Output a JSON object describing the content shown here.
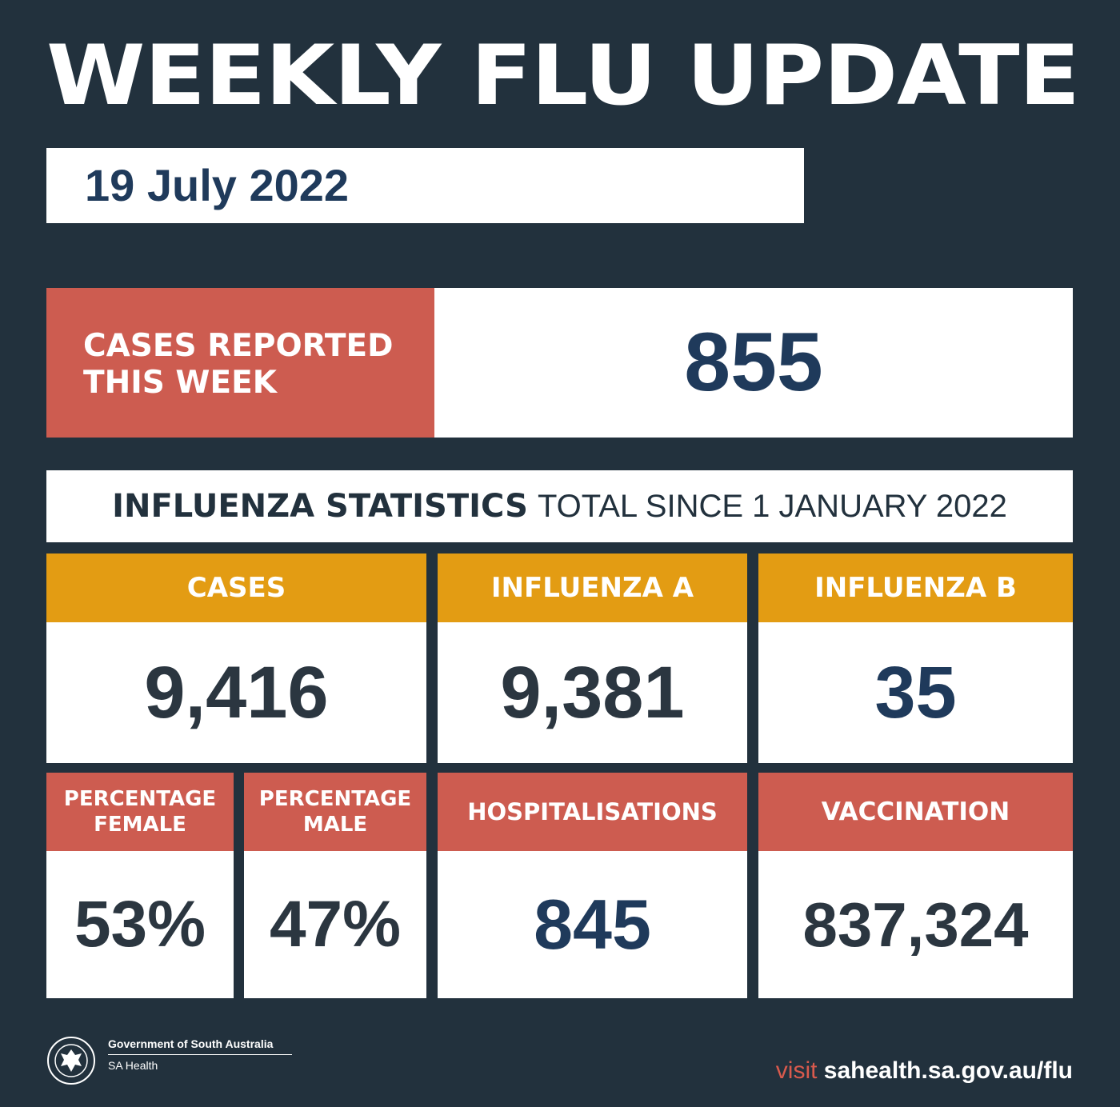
{
  "title": "WEEKLY FLU UPDATE",
  "date": "19 July 2022",
  "weekly": {
    "label_line1": "CASES REPORTED",
    "label_line2": "THIS WEEK",
    "value": "855"
  },
  "stats_bar": {
    "bold": "INFLUENZA STATISTICS",
    "light": "TOTAL SINCE 1 JANUARY 2022"
  },
  "stats": {
    "cases": {
      "label": "CASES",
      "value": "9,416"
    },
    "influenza_a": {
      "label": "INFLUENZA A",
      "value": "9,381"
    },
    "influenza_b": {
      "label": "INFLUENZA B",
      "value": "35"
    },
    "female": {
      "label_line1": "PERCENTAGE",
      "label_line2": "FEMALE",
      "value": "53%"
    },
    "male": {
      "label_line1": "PERCENTAGE",
      "label_line2": "MALE",
      "value": "47%"
    },
    "hospitalisations": {
      "label": "HOSPITALISATIONS",
      "value": "845"
    },
    "vaccination": {
      "label": "VACCINATION",
      "value": "837,324"
    }
  },
  "footer": {
    "org": "Government of South Australia",
    "dept": "SA Health",
    "visit_prefix": "visit",
    "visit_url": "sahealth.sa.gov.au/flu",
    "logo_icon": "sa-government-crest-icon"
  },
  "colors": {
    "background": "#22313d",
    "red": "#cd5c50",
    "gold": "#e39c13",
    "navy": "#1f3a5b"
  }
}
